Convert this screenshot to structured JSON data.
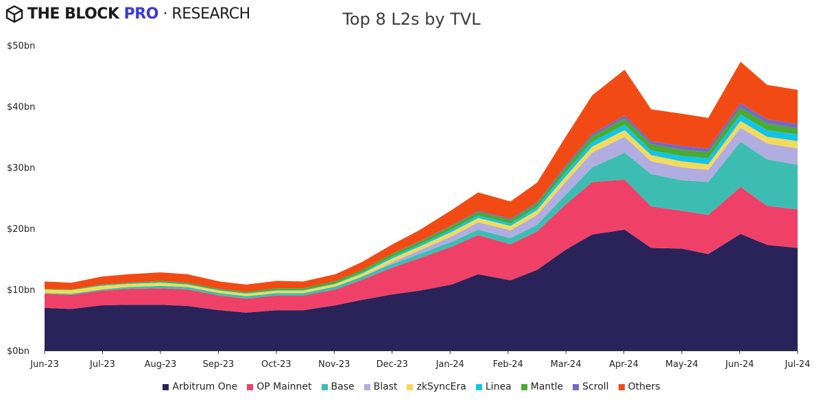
{
  "header": {
    "logo_part1": "THE BLOCK ",
    "logo_part2": "PRO",
    "logo_part3": " · RESEARCH"
  },
  "chart_data": {
    "type": "area",
    "stacked": true,
    "title": "Top 8 L2s by TVL",
    "xlabel": "",
    "ylabel": "",
    "ylim": [
      0,
      50
    ],
    "y_ticks": [
      "$0bn",
      "$10bn",
      "$20bn",
      "$30bn",
      "$40bn",
      "$50bn"
    ],
    "x_ticks": [
      "Jun-23",
      "Jul-23",
      "Aug-23",
      "Sep-23",
      "Oct-23",
      "Nov-23",
      "Dec-23",
      "Jan-24",
      "Feb-24",
      "Mar-24",
      "Apr-24",
      "May-24",
      "Jun-24",
      "Jul-24"
    ],
    "x": [
      "2023-06-01",
      "2023-06-15",
      "2023-07-01",
      "2023-07-15",
      "2023-08-01",
      "2023-08-15",
      "2023-09-01",
      "2023-09-15",
      "2023-10-01",
      "2023-10-15",
      "2023-11-01",
      "2023-11-15",
      "2023-12-01",
      "2023-12-15",
      "2024-01-01",
      "2024-01-15",
      "2024-02-01",
      "2024-02-15",
      "2024-03-01",
      "2024-03-15",
      "2024-04-01",
      "2024-04-15",
      "2024-05-01",
      "2024-05-15",
      "2024-06-01",
      "2024-06-15",
      "2024-07-01"
    ],
    "legend_position": "bottom",
    "grid": false,
    "series": [
      {
        "name": "Arbitrum One",
        "color": "#2a2359",
        "values": [
          7.0,
          6.8,
          7.4,
          7.5,
          7.5,
          7.3,
          6.6,
          6.2,
          6.6,
          6.6,
          7.4,
          8.3,
          9.2,
          9.8,
          10.8,
          12.5,
          11.5,
          13.2,
          16.5,
          19.0,
          19.8,
          16.8,
          16.7,
          15.8,
          19.1,
          17.3,
          16.8
        ]
      },
      {
        "name": "OP Mainnet",
        "color": "#ef4167",
        "values": [
          2.3,
          2.3,
          2.4,
          2.6,
          2.7,
          2.7,
          2.4,
          2.3,
          2.4,
          2.4,
          2.6,
          3.3,
          4.4,
          5.3,
          6.2,
          6.4,
          5.9,
          6.3,
          7.4,
          8.6,
          8.2,
          6.8,
          6.2,
          6.4,
          7.7,
          6.4,
          6.3
        ]
      },
      {
        "name": "Base",
        "color": "#3dbdb2",
        "values": [
          0.1,
          0.2,
          0.2,
          0.3,
          0.4,
          0.4,
          0.4,
          0.4,
          0.4,
          0.4,
          0.5,
          0.5,
          0.6,
          0.7,
          0.8,
          0.9,
          1.0,
          1.1,
          1.6,
          2.4,
          4.4,
          5.3,
          5.0,
          5.4,
          7.4,
          7.6,
          7.3
        ]
      },
      {
        "name": "Blast",
        "color": "#b2ade0",
        "values": [
          0,
          0,
          0,
          0,
          0,
          0,
          0,
          0,
          0,
          0,
          0,
          0,
          0.3,
          0.6,
          0.9,
          1.2,
          1.3,
          1.6,
          2.1,
          2.4,
          2.6,
          2.1,
          2.1,
          2.0,
          2.3,
          2.6,
          2.7
        ]
      },
      {
        "name": "zkSyncEra",
        "color": "#f4da5a",
        "values": [
          0.6,
          0.6,
          0.6,
          0.5,
          0.5,
          0.4,
          0.4,
          0.4,
          0.4,
          0.4,
          0.4,
          0.5,
          0.6,
          0.6,
          0.7,
          0.7,
          0.7,
          0.8,
          0.9,
          1.0,
          1.1,
          1.0,
          1.0,
          0.9,
          1.1,
          1.1,
          1.2
        ]
      },
      {
        "name": "Linea",
        "color": "#14c4e8",
        "values": [
          0,
          0,
          0.1,
          0.1,
          0.1,
          0.1,
          0.1,
          0.1,
          0.1,
          0.1,
          0.1,
          0.2,
          0.3,
          0.3,
          0.4,
          0.4,
          0.4,
          0.5,
          0.7,
          0.8,
          0.9,
          0.8,
          0.9,
          1.0,
          1.1,
          1.1,
          1.1
        ]
      },
      {
        "name": "Mantle",
        "color": "#49ab2f",
        "values": [
          0.1,
          0.1,
          0.1,
          0.1,
          0.2,
          0.2,
          0.2,
          0.2,
          0.3,
          0.3,
          0.4,
          0.4,
          0.5,
          0.5,
          0.6,
          0.6,
          0.6,
          0.6,
          0.8,
          0.9,
          1.0,
          1.0,
          1.0,
          1.0,
          1.1,
          1.1,
          1.0
        ]
      },
      {
        "name": "Scroll",
        "color": "#7568c9",
        "values": [
          0,
          0,
          0,
          0,
          0,
          0,
          0,
          0,
          0,
          0,
          0,
          0,
          0,
          0.1,
          0.1,
          0.2,
          0.2,
          0.2,
          0.3,
          0.4,
          0.5,
          0.5,
          0.6,
          0.6,
          0.7,
          0.7,
          0.7
        ]
      },
      {
        "name": "Others",
        "color": "#f24a14",
        "values": [
          1.2,
          1.1,
          1.3,
          1.4,
          1.4,
          1.4,
          1.2,
          1.2,
          1.2,
          1.1,
          1.1,
          1.3,
          1.5,
          1.8,
          2.5,
          3.0,
          2.8,
          3.2,
          4.7,
          6.3,
          7.5,
          5.2,
          5.3,
          5.0,
          6.8,
          5.6,
          5.6
        ]
      }
    ]
  }
}
